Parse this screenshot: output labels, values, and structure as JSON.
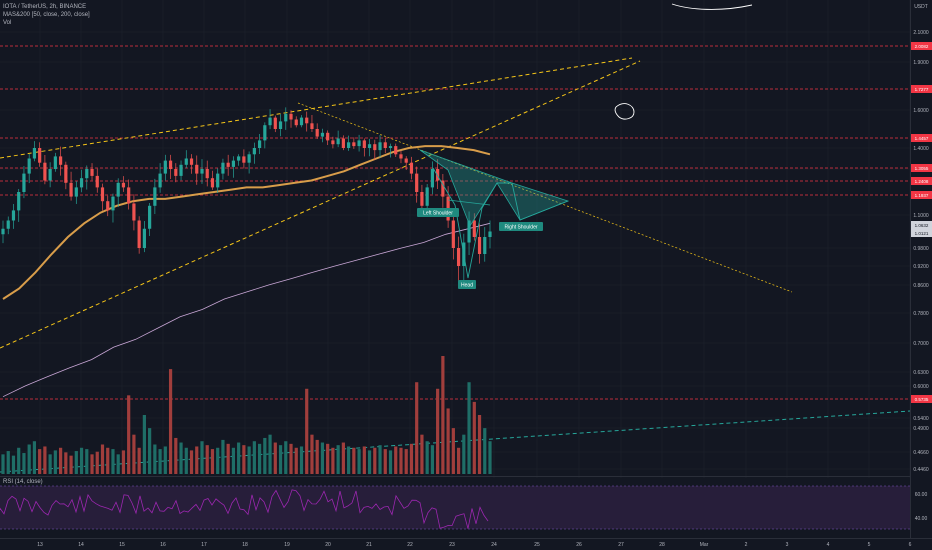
{
  "header": {
    "symbol_line": "IOTA / TetherUS, 2h, BINANCE",
    "ma_line": "MAS&200 [50, close, 200, close]",
    "vol_line": "Vol"
  },
  "rsi": {
    "label": "RSI (14, close)",
    "levels": [
      "60.00",
      "40.00"
    ]
  },
  "currency": "USDT",
  "price_axis": [
    "2.1000",
    "1.9000",
    "1.6000",
    "1.4000",
    "1.3000",
    "1.1000",
    "0.9800",
    "0.9200",
    "0.8600",
    "0.7800",
    "0.7000",
    "0.6300",
    "0.6000",
    "0.5400",
    "0.4900",
    "0.4660",
    "0.4460"
  ],
  "level_tags": [
    {
      "label": "2.0082",
      "color": "#f23645"
    },
    {
      "label": "1.7277",
      "color": "#f23645"
    },
    {
      "label": "1.4457",
      "color": "#f23645"
    },
    {
      "label": "1.3055",
      "color": "#f23645"
    },
    {
      "label": "1.2408",
      "color": "#f23645"
    },
    {
      "label": "1.1937",
      "color": "#f23645"
    },
    {
      "label": "1.0632",
      "color": "#d1d4dc"
    },
    {
      "label": "1.0121",
      "color": "#d1d4dc"
    },
    {
      "label": "0.5735",
      "color": "#f23645"
    }
  ],
  "time_axis": [
    "13",
    "14",
    "15",
    "16",
    "17",
    "18",
    "19",
    "20",
    "21",
    "22",
    "23",
    "24",
    "25",
    "26",
    "27",
    "28",
    "Mar",
    "2",
    "3",
    "4",
    "5",
    "6"
  ],
  "pattern_labels": {
    "left": "Left Shoulder",
    "head": "Head",
    "right": "Right Shoulder"
  },
  "chart_data": {
    "type": "line",
    "title": "IOTA / TetherUS, 2h, BINANCE",
    "xlabel": "",
    "ylabel": "",
    "close": [
      1.05,
      1.08,
      1.12,
      1.2,
      1.28,
      1.35,
      1.4,
      1.33,
      1.25,
      1.3,
      1.36,
      1.32,
      1.24,
      1.18,
      1.22,
      1.26,
      1.3,
      1.27,
      1.22,
      1.16,
      1.12,
      1.18,
      1.24,
      1.22,
      1.15,
      1.08,
      0.98,
      1.05,
      1.14,
      1.22,
      1.28,
      1.34,
      1.3,
      1.27,
      1.32,
      1.35,
      1.32,
      1.28,
      1.3,
      1.26,
      1.22,
      1.28,
      1.33,
      1.31,
      1.34,
      1.36,
      1.33,
      1.37,
      1.4,
      1.44,
      1.52,
      1.56,
      1.5,
      1.54,
      1.58,
      1.55,
      1.52,
      1.56,
      1.53,
      1.5,
      1.46,
      1.48,
      1.44,
      1.42,
      1.45,
      1.4,
      1.43,
      1.41,
      1.44,
      1.4,
      1.42,
      1.39,
      1.43,
      1.4,
      1.41,
      1.37,
      1.35,
      1.33,
      1.28,
      1.2,
      1.14,
      1.22,
      1.3,
      1.25,
      1.18,
      1.08,
      0.98,
      0.92,
      1.0,
      1.08,
      1.02,
      0.96,
      1.02,
      1.04
    ],
    "volume": [
      30,
      35,
      28,
      40,
      32,
      45,
      50,
      38,
      42,
      30,
      36,
      40,
      33,
      28,
      35,
      40,
      38,
      30,
      34,
      45,
      40,
      38,
      30,
      36,
      120,
      60,
      40,
      90,
      70,
      45,
      38,
      42,
      160,
      55,
      48,
      40,
      36,
      42,
      50,
      44,
      38,
      40,
      52,
      46,
      40,
      48,
      44,
      42,
      50,
      46,
      55,
      60,
      48,
      44,
      50,
      46,
      40,
      42,
      130,
      60,
      52,
      48,
      46,
      40,
      44,
      48,
      42,
      40,
      38,
      42,
      36,
      40,
      44,
      38,
      36,
      42,
      40,
      38,
      46,
      140,
      60,
      50,
      44,
      130,
      180,
      100,
      70,
      40,
      60,
      140,
      110,
      90,
      70,
      50
    ],
    "ma50": [
      0.82,
      0.85,
      0.9,
      0.96,
      1.02,
      1.07,
      1.11,
      1.14,
      1.16,
      1.17,
      1.17,
      1.18,
      1.19,
      1.2,
      1.21,
      1.22,
      1.22,
      1.23,
      1.24,
      1.25,
      1.27,
      1.29,
      1.32,
      1.35,
      1.38,
      1.4,
      1.41,
      1.41,
      1.4,
      1.39,
      1.37
    ],
    "ma200": [
      0.58,
      0.6,
      0.62,
      0.64,
      0.66,
      0.69,
      0.71,
      0.74,
      0.77,
      0.79,
      0.82,
      0.84,
      0.86,
      0.88,
      0.9,
      0.92,
      0.94,
      0.96,
      0.98,
      1.0,
      1.03,
      1.05,
      1.07
    ],
    "ylim": [
      0.43,
      2.2
    ],
    "legend": "top-left"
  }
}
